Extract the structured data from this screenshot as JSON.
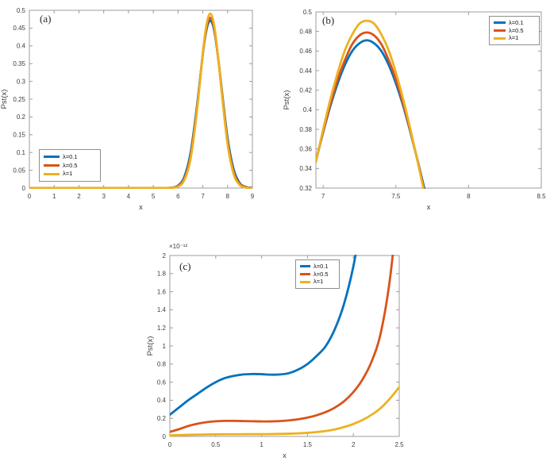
{
  "page": {
    "background": "#ffffff"
  },
  "axis_style": {
    "line_color": "#9c9c9c",
    "tick_color": "#9c9c9c",
    "label_color": "#3d3d3d",
    "legend_border": "#8f8f8f"
  },
  "palette": {
    "lambda_0_1": "#0072BD",
    "lambda_0_5": "#D95319",
    "lambda_1": "#EDB120"
  },
  "chart_data": [
    {
      "id": "a",
      "type": "line",
      "panel_label": "(a)",
      "xlabel": "x",
      "ylabel": "Pst(x)",
      "xlim": [
        0,
        9
      ],
      "ylim": [
        0,
        0.5
      ],
      "xtick_labels": [
        "0",
        "1",
        "2",
        "3",
        "4",
        "5",
        "6",
        "7",
        "8",
        "9"
      ],
      "ytick_labels": [
        "0",
        "0.05",
        "0.1",
        "0.15",
        "0.2",
        "0.25",
        "0.3",
        "0.35",
        "0.4",
        "0.45",
        "0.5"
      ],
      "grid": false,
      "legend_location": "southwest",
      "series": [
        {
          "name": "λ=0.1",
          "color": "#0072BD",
          "x": [
            0,
            1,
            2,
            3,
            4,
            5,
            5.5,
            5.75,
            6,
            6.25,
            6.5,
            6.75,
            7,
            7.1,
            7.2,
            7.3,
            7.4,
            7.5,
            7.65,
            7.75,
            8,
            8.25,
            8.5,
            8.75,
            9
          ],
          "y": [
            0,
            0,
            0,
            0,
            0,
            0.0001,
            0.0003,
            0.0012,
            0.007,
            0.031,
            0.097,
            0.223,
            0.377,
            0.427,
            0.46,
            0.471,
            0.46,
            0.427,
            0.348,
            0.286,
            0.14,
            0.051,
            0.013,
            0.003,
            0.001
          ]
        },
        {
          "name": "λ=0.5",
          "color": "#D95319",
          "x": [
            0,
            1,
            2,
            3,
            4,
            5,
            5.5,
            5.75,
            6,
            6.25,
            6.5,
            6.75,
            7,
            7.1,
            7.2,
            7.3,
            7.4,
            7.5,
            7.65,
            7.75,
            8,
            8.25,
            8.5,
            8.75,
            9
          ],
          "y": [
            0,
            0,
            0,
            0,
            0,
            0.0001,
            0.0002,
            0.001,
            0.006,
            0.026,
            0.088,
            0.215,
            0.378,
            0.431,
            0.467,
            0.479,
            0.467,
            0.431,
            0.347,
            0.281,
            0.131,
            0.044,
            0.011,
            0.002,
            0
          ]
        },
        {
          "name": "λ=1",
          "color": "#EDB120",
          "x": [
            0,
            1,
            2,
            3,
            4,
            5,
            5.5,
            5.75,
            6,
            6.25,
            6.5,
            6.75,
            7,
            7.1,
            7.2,
            7.3,
            7.4,
            7.5,
            7.65,
            7.75,
            8,
            8.25,
            8.5,
            8.75,
            9
          ],
          "y": [
            0,
            0,
            0,
            0,
            0,
            0,
            0.0002,
            0.0008,
            0.004,
            0.022,
            0.08,
            0.208,
            0.38,
            0.438,
            0.477,
            0.491,
            0.477,
            0.438,
            0.347,
            0.277,
            0.123,
            0.038,
            0.008,
            0.001,
            0
          ]
        }
      ]
    },
    {
      "id": "b",
      "type": "line",
      "panel_label": "(b)",
      "xlabel": "x",
      "ylabel": "Pst(x)",
      "xlim": [
        6.95,
        8.5
      ],
      "ylim": [
        0.32,
        0.5
      ],
      "xtick_labels": [
        "7",
        "7.5",
        "8",
        "8.5"
      ],
      "ytick_labels": [
        "0.32",
        "0.34",
        "0.36",
        "0.38",
        "0.4",
        "0.42",
        "0.44",
        "0.46",
        "0.48",
        "0.5"
      ],
      "grid": false,
      "legend_location": "northeast",
      "series": [
        {
          "name": "λ=0.1",
          "color": "#0072BD",
          "x": [
            6.95,
            7,
            7.05,
            7.1,
            7.15,
            7.2,
            7.25,
            7.3,
            7.35,
            7.4,
            7.45,
            7.5,
            7.55,
            7.6,
            7.65,
            7.7,
            7.75
          ],
          "y": [
            0.348,
            0.377,
            0.404,
            0.427,
            0.446,
            0.46,
            0.468,
            0.471,
            0.468,
            0.46,
            0.446,
            0.427,
            0.404,
            0.377,
            0.348,
            0.317,
            0.286
          ]
        },
        {
          "name": "λ=0.5",
          "color": "#D95319",
          "x": [
            6.95,
            7,
            7.05,
            7.1,
            7.15,
            7.2,
            7.25,
            7.3,
            7.35,
            7.4,
            7.45,
            7.5,
            7.55,
            7.6,
            7.65,
            7.7,
            7.75
          ],
          "y": [
            0.347,
            0.378,
            0.406,
            0.431,
            0.451,
            0.467,
            0.476,
            0.479,
            0.476,
            0.467,
            0.451,
            0.431,
            0.406,
            0.378,
            0.347,
            0.314,
            0.281
          ]
        },
        {
          "name": "λ=1",
          "color": "#EDB120",
          "x": [
            6.95,
            7,
            7.05,
            7.1,
            7.15,
            7.2,
            7.25,
            7.3,
            7.35,
            7.4,
            7.45,
            7.5,
            7.55,
            7.6,
            7.65,
            7.7,
            7.75
          ],
          "y": [
            0.347,
            0.38,
            0.411,
            0.438,
            0.461,
            0.477,
            0.488,
            0.491,
            0.488,
            0.477,
            0.461,
            0.438,
            0.411,
            0.38,
            0.347,
            0.312,
            0.277
          ]
        }
      ]
    },
    {
      "id": "c",
      "type": "line",
      "panel_label": "(c)",
      "xlabel": "x",
      "ylabel": "Pst(x)",
      "y_exponent_label": "×10⁻¹²",
      "xlim": [
        0,
        2.5
      ],
      "ylim": [
        0,
        2
      ],
      "xtick_labels": [
        "0",
        "0.5",
        "1",
        "1.5",
        "2",
        "2.5"
      ],
      "ytick_labels": [
        "0",
        "0.2",
        "0.4",
        "0.6",
        "0.8",
        "1",
        "1.2",
        "1.4",
        "1.6",
        "1.8",
        "2"
      ],
      "grid": false,
      "legend_location": "north",
      "series": [
        {
          "name": "λ=0.1",
          "color": "#0072BD",
          "x": [
            0,
            0.1,
            0.2,
            0.3,
            0.4,
            0.5,
            0.6,
            0.7,
            0.8,
            0.9,
            1,
            1.1,
            1.2,
            1.3,
            1.4,
            1.5,
            1.6,
            1.7,
            1.8,
            1.9,
            2,
            2.1
          ],
          "y": [
            0.24,
            0.32,
            0.4,
            0.47,
            0.54,
            0.6,
            0.645,
            0.67,
            0.685,
            0.69,
            0.688,
            0.683,
            0.685,
            0.7,
            0.74,
            0.8,
            0.89,
            1,
            1.19,
            1.47,
            1.88,
            2.45
          ]
        },
        {
          "name": "λ=0.5",
          "color": "#D95319",
          "x": [
            0,
            0.1,
            0.2,
            0.3,
            0.4,
            0.5,
            0.6,
            0.7,
            0.8,
            0.9,
            1,
            1.1,
            1.2,
            1.3,
            1.4,
            1.5,
            1.6,
            1.7,
            1.8,
            1.9,
            2,
            2.1,
            2.2,
            2.3,
            2.4,
            2.5
          ],
          "y": [
            0.05,
            0.08,
            0.115,
            0.14,
            0.158,
            0.168,
            0.172,
            0.172,
            0.17,
            0.168,
            0.166,
            0.166,
            0.17,
            0.178,
            0.19,
            0.208,
            0.234,
            0.27,
            0.32,
            0.39,
            0.49,
            0.63,
            0.83,
            1.15,
            1.75,
            2.7
          ]
        },
        {
          "name": "λ=1",
          "color": "#EDB120",
          "x": [
            0,
            0.1,
            0.2,
            0.3,
            0.4,
            0.5,
            0.6,
            0.7,
            0.8,
            0.9,
            1,
            1.1,
            1.2,
            1.3,
            1.4,
            1.5,
            1.6,
            1.7,
            1.8,
            1.9,
            2,
            2.1,
            2.2,
            2.3,
            2.4,
            2.5
          ],
          "y": [
            0.012,
            0.015,
            0.018,
            0.02,
            0.022,
            0.023,
            0.024,
            0.024,
            0.024,
            0.025,
            0.025,
            0.026,
            0.028,
            0.03,
            0.034,
            0.04,
            0.048,
            0.06,
            0.078,
            0.104,
            0.138,
            0.182,
            0.24,
            0.315,
            0.42,
            0.545
          ]
        }
      ]
    }
  ]
}
